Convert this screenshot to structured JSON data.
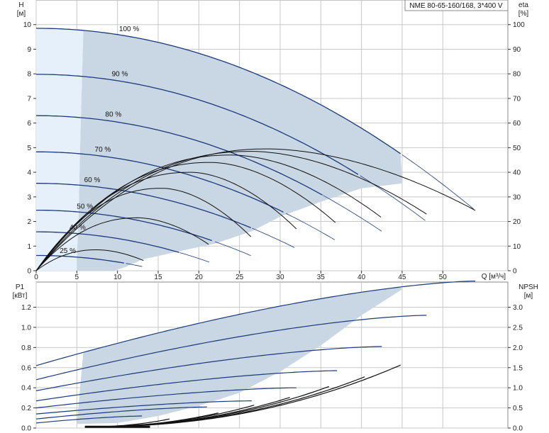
{
  "chart_data": [
    {
      "type": "line",
      "title": "NME 80-65-160/168, 3*400 V",
      "ylabel_left": "H",
      "ylabel_left_unit": "[м]",
      "ylabel_right": "eta",
      "ylabel_right_unit": "[%]",
      "xlabel": "Q [м³/ч]",
      "xlim": [
        0,
        58
      ],
      "ylim_left": [
        0,
        11
      ],
      "ylim_right": [
        0,
        110
      ],
      "x_ticks": [
        0,
        5,
        10,
        15,
        20,
        25,
        30,
        35,
        40,
        45,
        50
      ],
      "y_ticks_left": [
        0,
        1,
        2,
        3,
        4,
        5,
        6,
        7,
        8,
        9,
        10
      ],
      "y_ticks_right": [
        0,
        10,
        20,
        30,
        40,
        50,
        60,
        70,
        80,
        90,
        100
      ],
      "grid": true,
      "colors": {
        "curve": "#1a3a7a",
        "region": "#c9d6e4",
        "region_light": "#e6f0fa",
        "grid": "#c8c8c8",
        "eta": "#111111"
      },
      "head_curves": [
        {
          "label": "100 %",
          "shutoff_head": 9.85,
          "q_max": 54.0,
          "h_end": 2.45
        },
        {
          "label": "90 %",
          "shutoff_head": 7.98,
          "q_max": 48.0,
          "h_end": 2.0
        },
        {
          "label": "80 %",
          "shutoff_head": 6.3,
          "q_max": 42.5,
          "h_end": 1.6
        },
        {
          "label": "70 %",
          "shutoff_head": 4.83,
          "q_max": 37.0,
          "h_end": 1.2
        },
        {
          "label": "60 %",
          "shutoff_head": 3.55,
          "q_max": 32.0,
          "h_end": 0.9
        },
        {
          "label": "50 %",
          "shutoff_head": 2.46,
          "q_max": 26.5,
          "h_end": 0.6
        },
        {
          "label": "40 %",
          "shutoff_head": 1.58,
          "q_max": 21.3,
          "h_end": 0.35
        },
        {
          "label": "25 %",
          "shutoff_head": 0.62,
          "q_max": 13.3,
          "h_end": 0.15
        }
      ],
      "eta_curves": [
        {
          "peak_q": 28.5,
          "peak_eta": 49.5,
          "q_end": 54.0,
          "eta_end": 24.5
        },
        {
          "peak_q": 26.5,
          "peak_eta": 48.5,
          "q_end": 48.0,
          "eta_end": 23.0
        },
        {
          "peak_q": 24.0,
          "peak_eta": 47.0,
          "q_end": 42.5,
          "eta_end": 21.5
        },
        {
          "peak_q": 21.5,
          "peak_eta": 44.0,
          "q_end": 37.0,
          "eta_end": 19.0
        },
        {
          "peak_q": 19.0,
          "peak_eta": 40.0,
          "q_end": 32.0,
          "eta_end": 17.0
        },
        {
          "peak_q": 15.5,
          "peak_eta": 33.5,
          "q_end": 26.5,
          "eta_end": 13.5
        },
        {
          "peak_q": 12.5,
          "peak_eta": 21.5,
          "q_end": 21.3,
          "eta_end": 10.5
        },
        {
          "peak_q": 7.5,
          "peak_eta": 8.5,
          "q_end": 13.3,
          "eta_end": 4.0
        }
      ]
    },
    {
      "type": "line",
      "ylabel_left": "P1",
      "ylabel_left_unit": "[кВт]",
      "ylabel_right": "NPSH",
      "ylabel_right_unit": "[м]",
      "xlim": [
        0,
        58
      ],
      "ylim_left": [
        0,
        1.45
      ],
      "ylim_right": [
        0,
        3.625
      ],
      "y_ticks_left": [
        0.0,
        0.2,
        0.4,
        0.6,
        0.8,
        1.0,
        1.2
      ],
      "y_ticks_left_labels": [
        "0.0",
        "0.2",
        "0.4",
        "0.6",
        "0.8",
        "1.0",
        "1.2"
      ],
      "y_ticks_right": [
        0.0,
        0.5,
        1.0,
        1.5,
        2.0,
        2.5,
        3.0
      ],
      "y_ticks_right_labels": [
        "0.0",
        "0.5",
        "1.0",
        "1.5",
        "2.0",
        "2.5",
        "3.0"
      ],
      "power_curves": [
        {
          "p_start": 0.62,
          "q_end": 54.0,
          "p_end": 1.46
        },
        {
          "p_start": 0.48,
          "q_end": 48.0,
          "p_end": 1.12
        },
        {
          "p_start": 0.37,
          "q_end": 42.5,
          "p_end": 0.81
        },
        {
          "p_start": 0.27,
          "q_end": 37.0,
          "p_end": 0.57
        },
        {
          "p_start": 0.2,
          "q_end": 32.0,
          "p_end": 0.4
        },
        {
          "p_start": 0.14,
          "q_end": 26.5,
          "p_end": 0.27
        },
        {
          "p_start": 0.09,
          "q_end": 21.3,
          "p_end": 0.21
        },
        {
          "p_start": 0.05,
          "q_end": 13.3,
          "p_end": 0.12
        }
      ],
      "npsh_curves": [
        {
          "q_start": 6.0,
          "q_end": 45.0,
          "npsh_end": 1.55
        },
        {
          "q_start": 6.0,
          "q_end": 40.5,
          "npsh_end": 1.25
        },
        {
          "q_start": 6.0,
          "q_end": 36.0,
          "npsh_end": 1.0
        },
        {
          "q_start": 6.0,
          "q_end": 31.5,
          "npsh_end": 0.75
        },
        {
          "q_start": 6.0,
          "q_end": 27.0,
          "npsh_end": 0.55
        },
        {
          "q_start": 6.0,
          "q_end": 22.5,
          "npsh_end": 0.35
        },
        {
          "q_start": 6.0,
          "q_end": 16.5,
          "npsh_end": 0.2
        }
      ]
    }
  ]
}
